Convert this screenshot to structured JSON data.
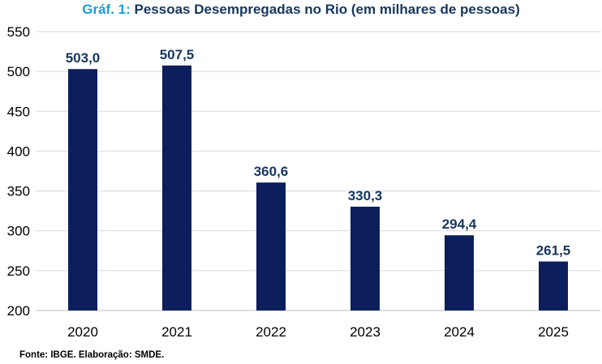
{
  "title": {
    "prefix": "Gráf. 1:",
    "main": "Pessoas Desempregadas no Rio (em milhares de pessoas)"
  },
  "source": "Fonte: IBGE. Elaboração: SMDE.",
  "colors": {
    "bar": "#0C1F5C",
    "title_prefix": "#1E9BD7",
    "title_main": "#17365D",
    "grid": "#D9D9D9",
    "axis": "#BFBFBF",
    "text": "#000000",
    "data_label": "#17365D"
  },
  "chart_data": {
    "type": "bar",
    "title": "Pessoas Desempregadas no Rio (em milhares de pessoas)",
    "categories": [
      "2020",
      "2021",
      "2022",
      "2023",
      "2024",
      "2025"
    ],
    "values": [
      503.0,
      507.5,
      360.6,
      330.3,
      294.4,
      261.5
    ],
    "value_labels": [
      "503,0",
      "507,5",
      "360,6",
      "330,3",
      "294,4",
      "261,5"
    ],
    "yticks": [
      200,
      250,
      300,
      350,
      400,
      450,
      500,
      550
    ],
    "ylim": [
      200,
      550
    ],
    "xlabel": "",
    "ylabel": "",
    "grid": true,
    "legend": "none"
  }
}
